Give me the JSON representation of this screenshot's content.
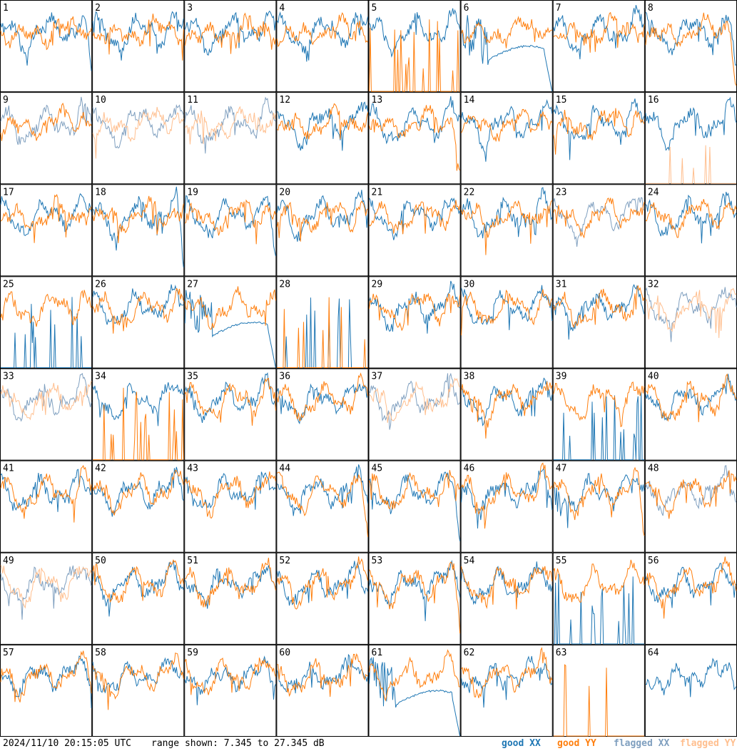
{
  "chart_data": {
    "type": "line",
    "layout": "small-multiples 8x8",
    "panel_labels": [
      "1",
      "2",
      "3",
      "4",
      "5",
      "6",
      "7",
      "8",
      "9",
      "10",
      "11",
      "12",
      "13",
      "14",
      "15",
      "16",
      "17",
      "18",
      "19",
      "20",
      "21",
      "22",
      "23",
      "24",
      "25",
      "26",
      "27",
      "28",
      "29",
      "30",
      "31",
      "32",
      "33",
      "34",
      "35",
      "36",
      "37",
      "38",
      "39",
      "40",
      "41",
      "42",
      "43",
      "44",
      "45",
      "46",
      "47",
      "48",
      "49",
      "50",
      "51",
      "52",
      "53",
      "54",
      "55",
      "56",
      "57",
      "58",
      "59",
      "60",
      "61",
      "62",
      "63",
      "64"
    ],
    "ylim": [
      7.345,
      27.345
    ],
    "yunit": "dB",
    "series_names": [
      "good XX",
      "good YY",
      "flagged XX",
      "flagged YY"
    ],
    "colors": {
      "good_xx": "#1f77b4",
      "good_yy": "#ff7f0e",
      "flagged_xx": "#7f9fbf",
      "flagged_yy": "#ffbf8f"
    },
    "panel_modes": {
      "xx": {
        "1": "drop",
        "2": "n",
        "3": "n",
        "4": "n",
        "5": "n",
        "6": "mound",
        "7": "n",
        "8": "drop",
        "9": "flagged",
        "10": "flagged",
        "11": "flagged",
        "12": "n",
        "13": "n",
        "14": "n",
        "15": "n",
        "16": "n",
        "17": "n",
        "18": "drop",
        "19": "drop",
        "20": "n",
        "21": "n",
        "22": "n",
        "23": "flagged",
        "24": "n",
        "25": "spiky",
        "26": "n",
        "27": "mound",
        "28": "spiky",
        "29": "n",
        "30": "n",
        "31": "n",
        "32": "flagged",
        "33": "flagged",
        "34": "n",
        "35": "n",
        "36": "n",
        "37": "flagged",
        "38": "n",
        "39": "spiky",
        "40": "n",
        "41": "n",
        "42": "n",
        "43": "n",
        "44": "n",
        "45": "drop",
        "46": "n",
        "47": "n",
        "48": "flagged",
        "49": "flagged",
        "50": "n",
        "51": "n",
        "52": "n",
        "53": "n",
        "54": "n",
        "55": "spiky",
        "56": "n",
        "57": "n",
        "58": "n",
        "59": "n",
        "60": "n",
        "61": "mound",
        "62": "n",
        "63": "none",
        "64": "n"
      },
      "yy": {
        "1": "n",
        "2": "n",
        "3": "n",
        "4": "n",
        "5": "spiky",
        "6": "n",
        "7": "n",
        "8": "drop",
        "9": "n",
        "10": "flagged",
        "11": "flagged",
        "12": "n",
        "13": "drop",
        "14": "n",
        "15": "n",
        "16": "spikyflag",
        "17": "n",
        "18": "n",
        "19": "n",
        "20": "n",
        "21": "n",
        "22": "n",
        "23": "n",
        "24": "n",
        "25": "n",
        "26": "n",
        "27": "n",
        "28": "spiky",
        "29": "n",
        "30": "n",
        "31": "n",
        "32": "flagged",
        "33": "flagged",
        "34": "spiky",
        "35": "n",
        "36": "n",
        "37": "flagged",
        "38": "n",
        "39": "n",
        "40": "n",
        "41": "n",
        "42": "n",
        "43": "n",
        "44": "drop",
        "45": "n",
        "46": "n",
        "47": "drop",
        "48": "n",
        "49": "flagged",
        "50": "n",
        "51": "n",
        "52": "n",
        "53": "drop",
        "54": "n",
        "55": "n",
        "56": "n",
        "57": "n",
        "58": "n",
        "59": "n",
        "60": "n",
        "61": "n",
        "62": "n",
        "63": "spiky",
        "64": "none"
      }
    }
  },
  "footer": {
    "timestamp": "2024/11/10 20:15:05 UTC",
    "range_text": "range shown: 7.345 to 27.345 dB",
    "legend": [
      "good XX",
      "good YY",
      "flagged XX",
      "flagged YY"
    ]
  }
}
